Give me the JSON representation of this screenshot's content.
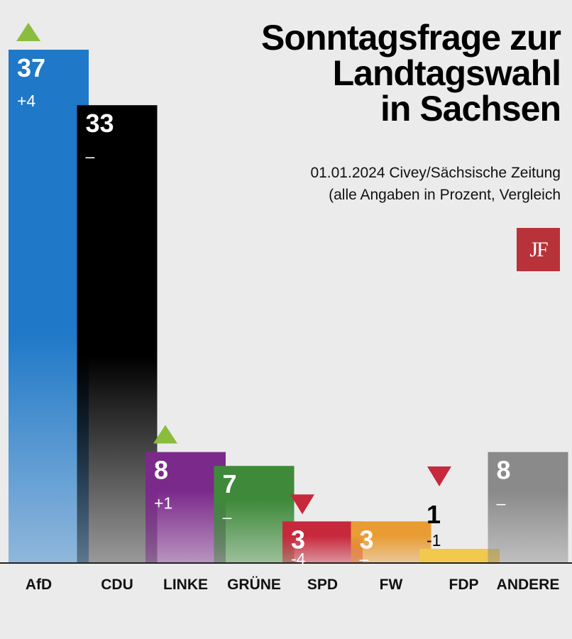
{
  "header": {
    "title_lines": [
      "Sonntagsfrage zur",
      "Landtagswahl",
      "in Sachsen"
    ],
    "subtitle_lines": [
      "01.01.2024 Civey/Sächsische Zeitung",
      "(alle Angaben in Prozent, Vergleich"
    ],
    "logo_text": "JF"
  },
  "chart_data": {
    "type": "bar",
    "title": "Sonntagsfrage zur Landtagswahl in Sachsen",
    "categories": [
      "AfD",
      "CDU",
      "LINKE",
      "GRÜNE",
      "SPD",
      "FW",
      "FDP",
      "ANDERE"
    ],
    "values": [
      37,
      33,
      8,
      7,
      3,
      3,
      1,
      8
    ],
    "changes": [
      "+4",
      "–",
      "+1",
      "–",
      "-4",
      "–",
      "-1",
      "–"
    ],
    "trend": [
      "up",
      "none",
      "up",
      "none",
      "down",
      "none",
      "down",
      "none"
    ],
    "colors": [
      "#1f78c8",
      "#000000",
      "#7b2a8b",
      "#3e8a3a",
      "#c8283c",
      "#e99c34",
      "#f2c94c",
      "#8a8a8a"
    ],
    "up_color": "#8bbd3d",
    "down_color": "#c8283c",
    "ylim": [
      0,
      37
    ],
    "grid": false,
    "legend": "none"
  }
}
